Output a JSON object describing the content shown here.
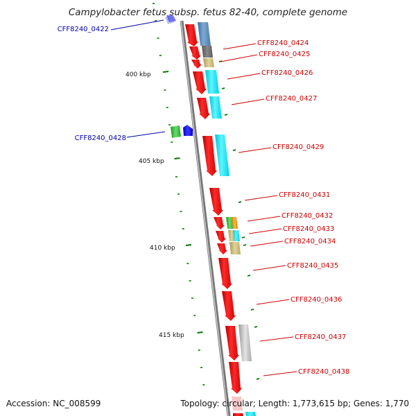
{
  "title": "Campylobacter fetus subsp. fetus 82-40, complete genome",
  "footer": {
    "accession": "Accession: NC_008599",
    "summary": "Topology: circular; Length: 1,773,615 bp; Genes: 1,770"
  },
  "colors": {
    "backbone": "#8a8a8a",
    "gene_red": "#ff0000",
    "label_red": "#cc0000",
    "label_blue": "#0000aa",
    "tick_green": "#007700"
  },
  "ruler_labels": [
    "400 kbp",
    "405 kbp",
    "410 kbp",
    "415 kbp"
  ],
  "genes_left": [
    "CFF8240_0422",
    "CFF8240_0428"
  ],
  "genes_right": [
    "CFF8240_0424",
    "CFF8240_0425",
    "CFF8240_0426",
    "CFF8240_0427",
    "CFF8240_0429",
    "CFF8240_0431",
    "CFF8240_0432",
    "CFF8240_0433",
    "CFF8240_0434",
    "CFF8240_0435",
    "CFF8240_0436",
    "CFF8240_0437",
    "CFF8240_0438"
  ]
}
